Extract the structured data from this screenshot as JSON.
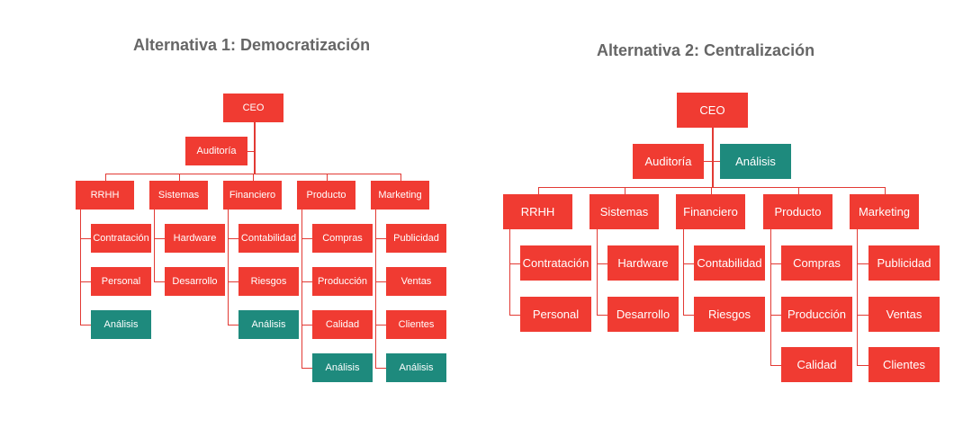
{
  "alt1": {
    "title": "Alternativa 1: Democratización",
    "ceo": "CEO",
    "auditoria": "Auditoría",
    "departments": [
      {
        "label": "RRHH",
        "children": [
          {
            "label": "Contratación",
            "green": false
          },
          {
            "label": "Personal",
            "green": false
          },
          {
            "label": "Análisis",
            "green": true
          }
        ]
      },
      {
        "label": "Sistemas",
        "children": [
          {
            "label": "Hardware",
            "green": false
          },
          {
            "label": "Desarrollo",
            "green": false
          }
        ]
      },
      {
        "label": "Financiero",
        "children": [
          {
            "label": "Contabilidad",
            "green": false
          },
          {
            "label": "Riesgos",
            "green": false
          },
          {
            "label": "Análisis",
            "green": true
          }
        ]
      },
      {
        "label": "Producto",
        "children": [
          {
            "label": "Compras",
            "green": false
          },
          {
            "label": "Producción",
            "green": false
          },
          {
            "label": "Calidad",
            "green": false
          },
          {
            "label": "Análisis",
            "green": true
          }
        ]
      },
      {
        "label": "Marketing",
        "children": [
          {
            "label": "Publicidad",
            "green": false
          },
          {
            "label": "Ventas",
            "green": false
          },
          {
            "label": "Clientes",
            "green": false
          },
          {
            "label": "Análisis",
            "green": true
          }
        ]
      }
    ]
  },
  "alt2": {
    "title": "Alternativa 2: Centralización",
    "ceo": "CEO",
    "auditoria": "Auditoría",
    "analisis": "Análisis",
    "departments": [
      {
        "label": "RRHH",
        "children": [
          {
            "label": "Contratación",
            "green": false
          },
          {
            "label": "Personal",
            "green": false
          }
        ]
      },
      {
        "label": "Sistemas",
        "children": [
          {
            "label": "Hardware",
            "green": false
          },
          {
            "label": "Desarrollo",
            "green": false
          }
        ]
      },
      {
        "label": "Financiero",
        "children": [
          {
            "label": "Contabilidad",
            "green": false
          },
          {
            "label": "Riesgos",
            "green": false
          }
        ]
      },
      {
        "label": "Producto",
        "children": [
          {
            "label": "Compras",
            "green": false
          },
          {
            "label": "Producción",
            "green": false
          },
          {
            "label": "Calidad",
            "green": false
          }
        ]
      },
      {
        "label": "Marketing",
        "children": [
          {
            "label": "Publicidad",
            "green": false
          },
          {
            "label": "Ventas",
            "green": false
          },
          {
            "label": "Clientes",
            "green": false
          }
        ]
      }
    ]
  },
  "colors": {
    "box": "#f03b32",
    "green": "#1e8a7d",
    "line": "#e23a34",
    "title": "#666666"
  }
}
